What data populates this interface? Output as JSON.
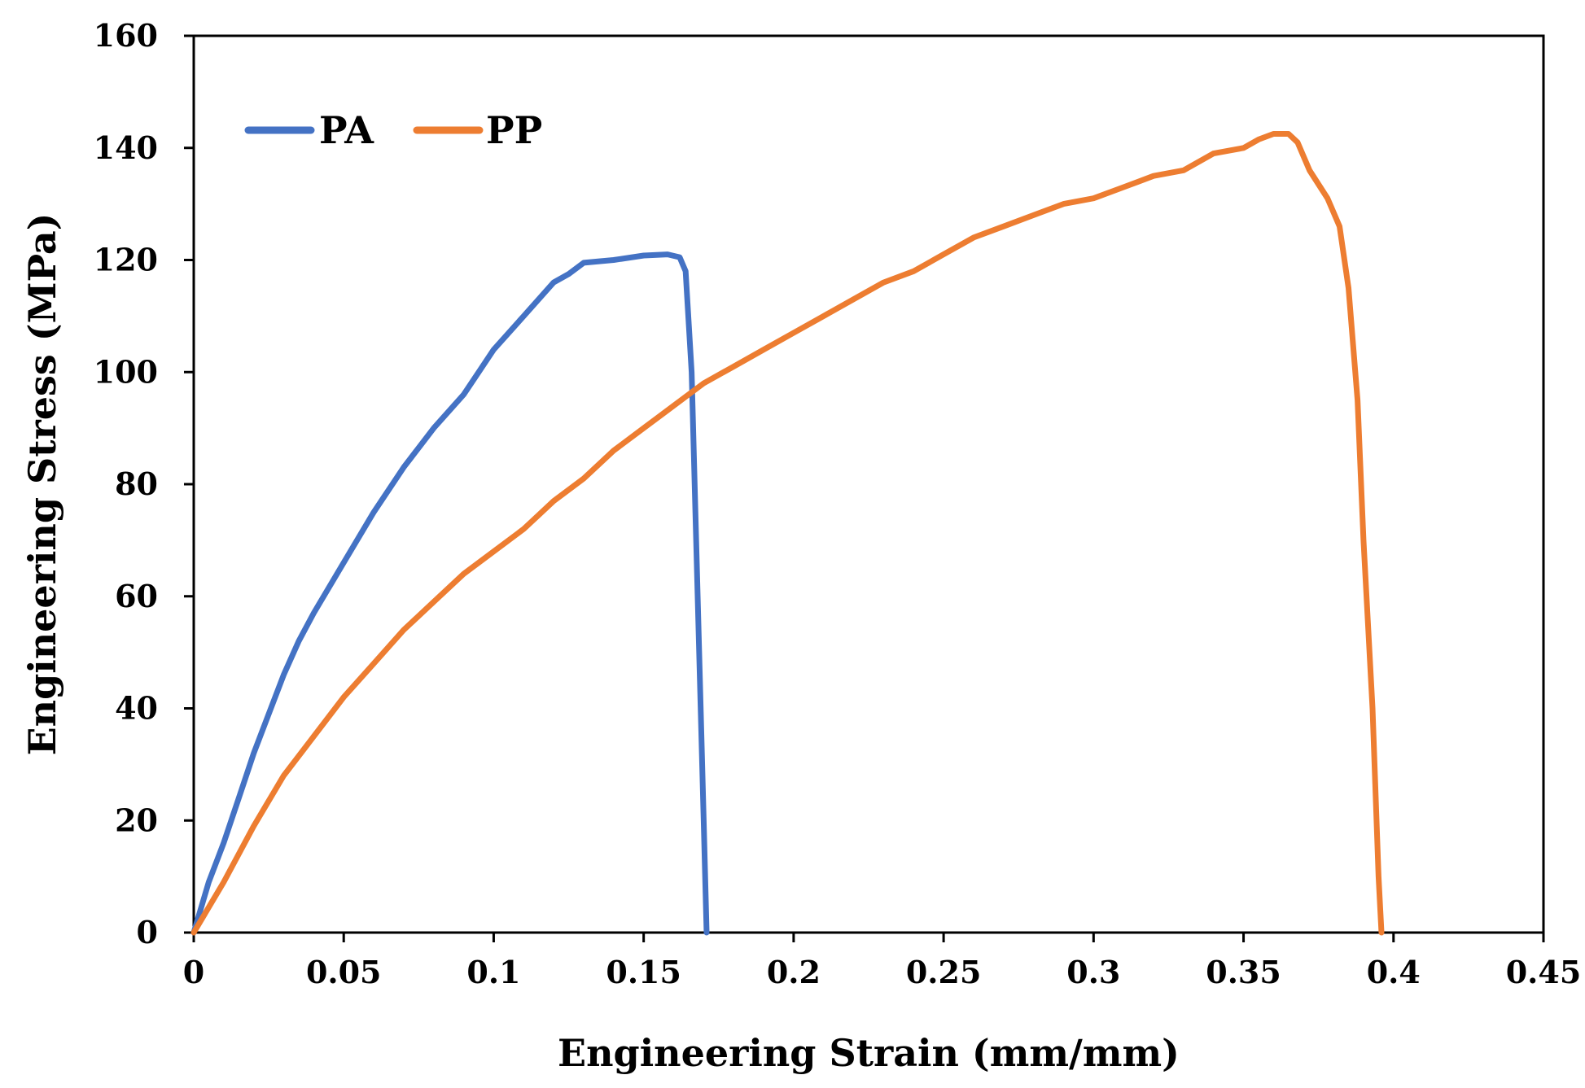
{
  "chart_data": {
    "type": "line",
    "title": "",
    "xlabel": "Engineering Strain (mm/mm)",
    "ylabel": "Engineering Stress (MPa)",
    "xlim": [
      0,
      0.45
    ],
    "ylim": [
      0,
      160
    ],
    "x_ticks": [
      0,
      0.05,
      0.1,
      0.15,
      0.2,
      0.25,
      0.3,
      0.35,
      0.4,
      0.45
    ],
    "x_tick_labels": [
      "0",
      "0.05",
      "0.1",
      "0.15",
      "0.2",
      "0.25",
      "0.3",
      "0.35",
      "0.4",
      "0.45"
    ],
    "y_ticks": [
      0,
      20,
      40,
      60,
      80,
      100,
      120,
      140,
      160
    ],
    "y_tick_labels": [
      "0",
      "20",
      "40",
      "60",
      "80",
      "100",
      "120",
      "140",
      "160"
    ],
    "grid": false,
    "legend_position": "top-left",
    "series": [
      {
        "name": "PA",
        "color": "#4472C4",
        "x": [
          0,
          0.005,
          0.01,
          0.015,
          0.02,
          0.025,
          0.03,
          0.035,
          0.04,
          0.05,
          0.06,
          0.07,
          0.08,
          0.09,
          0.095,
          0.1,
          0.11,
          0.12,
          0.125,
          0.13,
          0.14,
          0.15,
          0.158,
          0.162,
          0.164,
          0.166,
          0.168,
          0.17,
          0.171
        ],
        "y": [
          0,
          9,
          16,
          24,
          32,
          39,
          46,
          52,
          57,
          66,
          75,
          83,
          90,
          96,
          100,
          104,
          110,
          116,
          117.5,
          119.5,
          120,
          120.8,
          121,
          120.5,
          118,
          100,
          60,
          20,
          0
        ]
      },
      {
        "name": "PP",
        "color": "#ED7D31",
        "x": [
          0,
          0.01,
          0.02,
          0.03,
          0.04,
          0.05,
          0.06,
          0.07,
          0.08,
          0.09,
          0.1,
          0.11,
          0.12,
          0.13,
          0.14,
          0.15,
          0.16,
          0.17,
          0.18,
          0.19,
          0.2,
          0.21,
          0.22,
          0.23,
          0.24,
          0.25,
          0.26,
          0.27,
          0.28,
          0.29,
          0.3,
          0.31,
          0.32,
          0.33,
          0.34,
          0.35,
          0.355,
          0.36,
          0.365,
          0.368,
          0.372,
          0.378,
          0.382,
          0.385,
          0.388,
          0.39,
          0.393,
          0.395,
          0.396
        ],
        "y": [
          0,
          9,
          19,
          28,
          35,
          42,
          48,
          54,
          59,
          64,
          68,
          72,
          77,
          81,
          86,
          90,
          94,
          98,
          101,
          104,
          107,
          110,
          113,
          116,
          118,
          121,
          124,
          126,
          128,
          130,
          131,
          133,
          135,
          136,
          139,
          140,
          141.5,
          142.5,
          142.5,
          141,
          136,
          131,
          126,
          115,
          95,
          70,
          40,
          10,
          0
        ]
      }
    ]
  }
}
